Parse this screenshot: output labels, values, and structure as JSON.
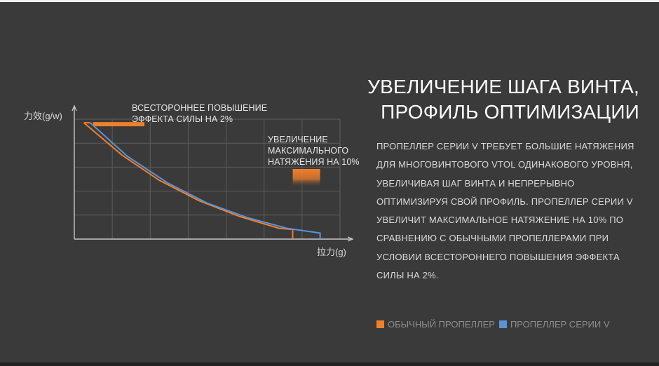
{
  "title_lines": [
    "УВЕЛИЧЕНИЕ ШАГА ВИНТА,",
    "ПРОФИЛЬ ОПТИМИЗАЦИИ"
  ],
  "description": "ПРОПЕЛЛЕР СЕРИИ V ТРЕБУЕТ БОЛЬШИЕ НАТЯЖЕНИЯ ДЛЯ МНОГОВИНТОВОГО VTOL ОДИНАКОВОГО УРОВНЯ, УВЕЛИЧИВАЯ ШАГ ВИНТА И НЕПРЕРЫВНО ОПТИМИЗИРУЯ СВОЙ ПРОФИЛЬ. ПРОПЕЛЛЕР СЕРИИ V УВЕЛИЧИТ МАКСИМАЛЬНОЕ НАТЯЖЕНИЕ НА 10% ПО СРАВНЕНИЮ С ОБЫЧНЫМИ ПРОПЕЛЛЕРАМИ ПРИ УСЛОВИИ ВСЕСТОРОННЕГО ПОВЫШЕНИЯ ЭФФЕКТА СИЛЫ НА 2%.",
  "legend": [
    {
      "label": "ОБЫЧНЫЙ ПРОПЕЛЛЕР",
      "color": "#f07f2b"
    },
    {
      "label": "ПРОПЕЛЛЕР СЕРИИ V",
      "color": "#5b93d3"
    }
  ],
  "chart_data": {
    "type": "line",
    "title": "",
    "xlabel": "拉力(g)",
    "ylabel": "力效(g/w)",
    "grid": true,
    "x_ticks_labeled": false,
    "y_ticks_labeled": false,
    "xlim": [
      0,
      100
    ],
    "ylim": [
      0,
      100
    ],
    "series": [
      {
        "name": "ОБЫЧНЫЙ ПРОПЕЛЛЕР",
        "color": "#f07f2b",
        "x": [
          3.6,
          18,
          32,
          47,
          62,
          77,
          82.2,
          82.2
        ],
        "y": [
          97,
          70,
          49,
          32,
          19,
          9,
          8,
          0
        ]
      },
      {
        "name": "ПРОПЕЛЛЕР СЕРИИ V",
        "color": "#5b93d3",
        "x": [
          6,
          20,
          35,
          50,
          65,
          80,
          92.5,
          92.5
        ],
        "y": [
          97,
          69,
          47,
          30,
          18,
          9,
          5,
          0
        ]
      }
    ],
    "annotations": [
      {
        "lines": [
          "ВСЕСТОРОННЕЕ ПОВЫШЕНИЕ",
          "ЭФФЕКТА СИЛЫ НА 2%"
        ],
        "indicates_percent": 2
      },
      {
        "lines": [
          "УВЕЛИЧЕНИЕ",
          "МАКСИМАЛЬНОГО",
          "НАТЯЖЕНИЯ НА 10%"
        ],
        "indicates_percent": 10
      }
    ]
  }
}
